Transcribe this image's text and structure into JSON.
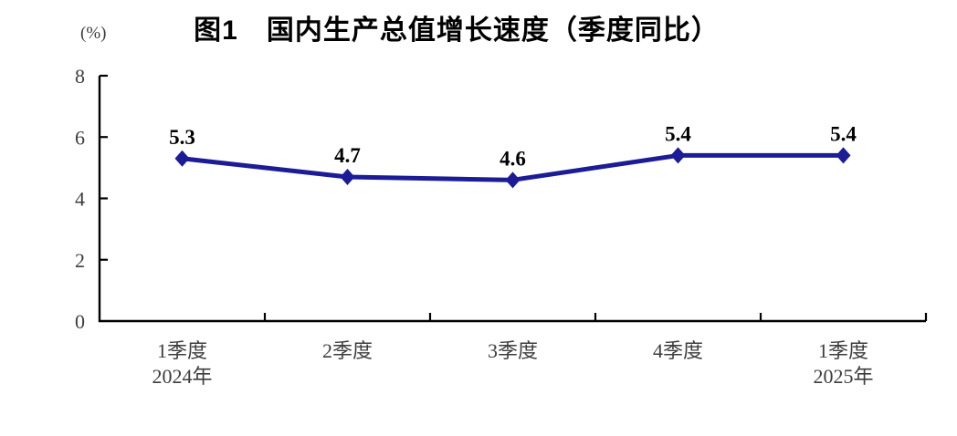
{
  "chart_data": {
    "type": "line",
    "title": "图1　国内生产总值增长速度（季度同比）",
    "unit_label": "(%)",
    "categories": [
      {
        "line1": "1季度",
        "line2": "2024年"
      },
      {
        "line1": "2季度",
        "line2": ""
      },
      {
        "line1": "3季度",
        "line2": ""
      },
      {
        "line1": "4季度",
        "line2": ""
      },
      {
        "line1": "1季度",
        "line2": "2025年"
      }
    ],
    "values": [
      5.3,
      4.7,
      4.6,
      5.4,
      5.4
    ],
    "data_labels": [
      "5.3",
      "4.7",
      "4.6",
      "5.4",
      "5.4"
    ],
    "y_ticks": [
      0,
      2,
      4,
      6,
      8
    ],
    "ylim": [
      0,
      8
    ],
    "grid": false,
    "legend": "none",
    "colors": {
      "line": "#1c1c96",
      "marker": "#1c1c96",
      "axis": "#000000",
      "tick_text": "#3d3d3d",
      "data_label_text": "#000000",
      "title_text": "#000000",
      "background": "#ffffff"
    }
  }
}
